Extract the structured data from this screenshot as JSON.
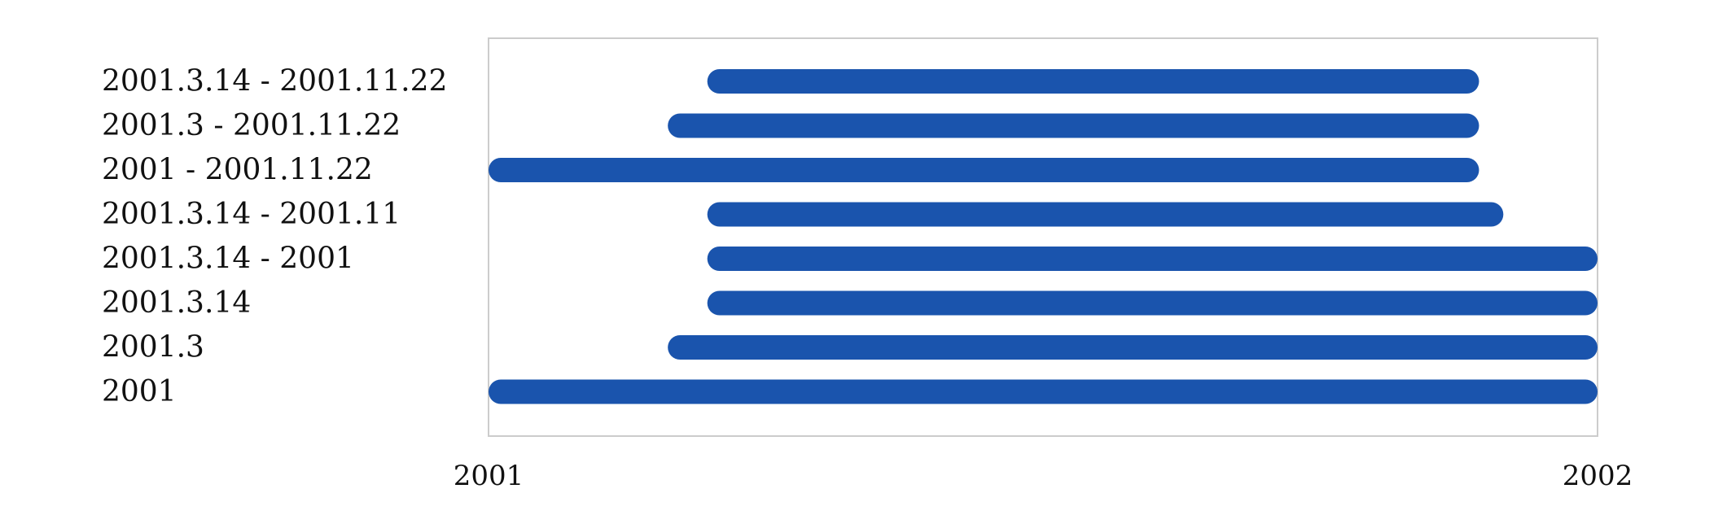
{
  "chart_data": {
    "type": "bar",
    "orientation": "horizontal-range",
    "title": "",
    "xlabel": "",
    "ylabel": "",
    "xlim": [
      "2001-01-01",
      "2002-01-01"
    ],
    "x_ticks": [
      "2001",
      "2002"
    ],
    "grid": false,
    "bar_color": "#1a54ad",
    "frame_color": "#cccccc",
    "categories": [
      "2001.3.14 - 2001.11.22",
      "2001.3 - 2001.11.22",
      "2001 - 2001.11.22",
      "2001.3.14 - 2001.11",
      "2001.3.14 - 2001",
      "2001.3.14",
      "2001.3",
      "2001"
    ],
    "ranges": [
      {
        "start": "2001-03-14",
        "end": "2001-11-22"
      },
      {
        "start": "2001-03-01",
        "end": "2001-11-22"
      },
      {
        "start": "2001-01-01",
        "end": "2001-11-22"
      },
      {
        "start": "2001-03-14",
        "end": "2001-11-30"
      },
      {
        "start": "2001-03-14",
        "end": "2001-12-31"
      },
      {
        "start": "2001-03-14",
        "end": "2001-12-31"
      },
      {
        "start": "2001-03-01",
        "end": "2001-12-31"
      },
      {
        "start": "2001-01-01",
        "end": "2001-12-31"
      }
    ]
  }
}
